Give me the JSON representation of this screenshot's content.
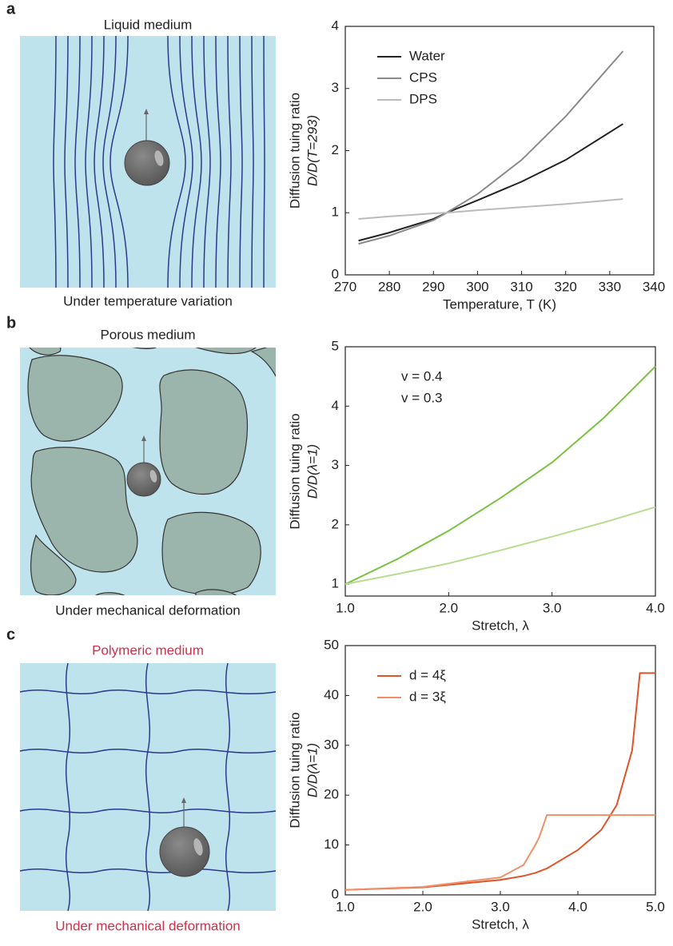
{
  "panels": [
    {
      "label": "a",
      "top_text": "Liquid medium",
      "bottom_text": "Under temperature variation"
    },
    {
      "label": "b",
      "top_text": "Porous medium",
      "bottom_text": "Under mechanical deformation"
    },
    {
      "label": "c",
      "top_text": "Polymeric medium",
      "bottom_text": "Under mechanical deformation"
    }
  ],
  "chart_data": [
    {
      "type": "line",
      "xlabel": "Temperature, T (K)",
      "ylabel": [
        "Diffusion tuing ratio",
        "D/D(T=293)"
      ],
      "x": [
        273,
        280,
        290,
        293,
        300,
        310,
        320,
        333
      ],
      "series": [
        {
          "name": "Water",
          "color": "#222222",
          "values": [
            0.55,
            0.68,
            0.9,
            1.0,
            1.2,
            1.5,
            1.85,
            2.43
          ]
        },
        {
          "name": "CPS",
          "color": "#8a8a8a",
          "values": [
            0.5,
            0.63,
            0.88,
            1.0,
            1.3,
            1.85,
            2.55,
            3.6
          ]
        },
        {
          "name": "DPS",
          "color": "#bbbbbb",
          "values": [
            0.9,
            0.94,
            0.99,
            1.0,
            1.04,
            1.09,
            1.14,
            1.22
          ]
        }
      ],
      "xlim": [
        270,
        340
      ],
      "xticks": [
        270,
        280,
        290,
        300,
        310,
        320,
        330,
        340
      ],
      "ylim": [
        0,
        4
      ],
      "yticks": [
        0,
        1,
        2,
        3,
        4
      ],
      "legend": "upper left",
      "legend_swatch": true
    },
    {
      "type": "line",
      "xlabel": "Stretch, λ",
      "ylabel": [
        "Diffusion tuing ratio",
        "D/D(λ=1)"
      ],
      "x": [
        1.0,
        1.5,
        2.0,
        2.5,
        3.0,
        3.5,
        4.0
      ],
      "series": [
        {
          "name": "v = 0.4",
          "color": "#7cc144",
          "values": [
            1.0,
            1.42,
            1.9,
            2.45,
            3.05,
            3.8,
            4.67
          ]
        },
        {
          "name": "v = 0.3",
          "color": "#b8dd90",
          "values": [
            1.0,
            1.17,
            1.35,
            1.57,
            1.8,
            2.04,
            2.3
          ]
        }
      ],
      "xlim": [
        1,
        4
      ],
      "xticks": [
        {
          "value": 1,
          "label": "1.0"
        },
        {
          "value": 2,
          "label": "2.0"
        },
        {
          "value": 3,
          "label": "3.0"
        },
        {
          "value": 4,
          "label": "4.0"
        }
      ],
      "ylim": [
        0.8,
        5
      ],
      "yticks": [
        1,
        2,
        3,
        4,
        5
      ],
      "legend": "upper left",
      "legend_swatch": false
    },
    {
      "type": "line",
      "xlabel": "Stretch, λ",
      "ylabel": [
        "Diffusion tuing ratio",
        "D/D(λ=1)"
      ],
      "x": [
        1.0,
        2.0,
        3.0,
        3.3,
        3.45,
        3.5,
        3.6,
        4.0,
        4.3,
        4.5,
        4.7,
        4.8,
        5.0
      ],
      "series": [
        {
          "name": "d = 4ξ",
          "color": "#e0542a",
          "values": [
            1.0,
            1.5,
            3.0,
            3.8,
            4.4,
            4.7,
            5.3,
            9.0,
            13.0,
            18.0,
            29.0,
            44.5,
            44.5
          ]
        },
        {
          "name": "d = 3ξ",
          "color": "#ef9068",
          "values": [
            1.0,
            1.6,
            3.5,
            6.0,
            10.0,
            11.5,
            16.0,
            16.0,
            16.0,
            16.0,
            16.0,
            16.0,
            16.0
          ]
        }
      ],
      "xlim": [
        1,
        5
      ],
      "xticks": [
        {
          "value": 1,
          "label": "1.0"
        },
        {
          "value": 2,
          "label": "2.0"
        },
        {
          "value": 3,
          "label": "3.0"
        },
        {
          "value": 4,
          "label": "4.0"
        },
        {
          "value": 5,
          "label": "5.0"
        }
      ],
      "ylim": [
        0,
        50
      ],
      "yticks": [
        0,
        10,
        20,
        30,
        40,
        50
      ],
      "legend": "upper left",
      "legend_swatch": true
    }
  ]
}
